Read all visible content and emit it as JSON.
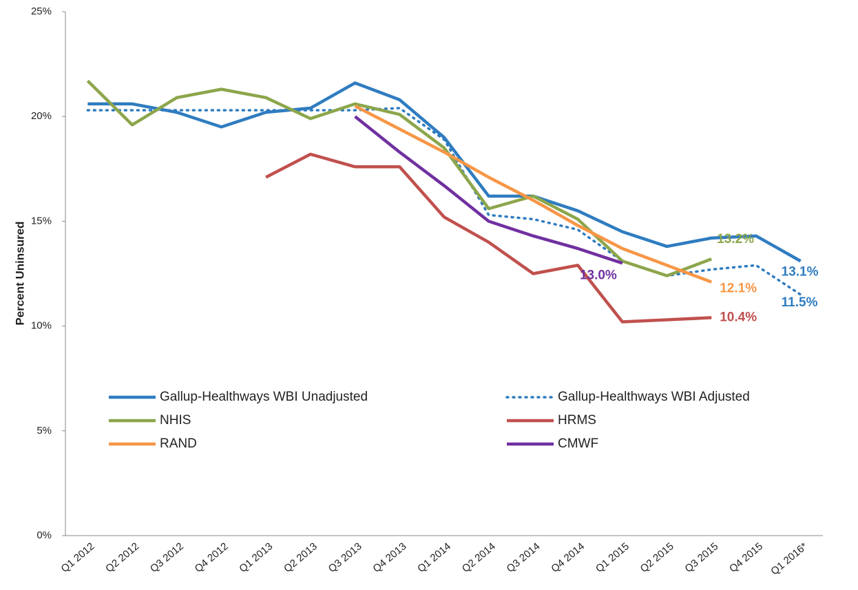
{
  "chart_data": {
    "type": "line",
    "y_label": "Percent Uninsured",
    "categories": [
      "Q1 2012",
      "Q2 2012",
      "Q3 2012",
      "Q4 2012",
      "Q1 2013",
      "Q2 2013",
      "Q3 2013",
      "Q4 2013",
      "Q1 2014",
      "Q2 2014",
      "Q3 2014",
      "Q4 2014",
      "Q1 2015",
      "Q2 2015",
      "Q3 2015",
      "Q4 2015",
      "Q1 2016*"
    ],
    "ylim": [
      0,
      25
    ],
    "yticks": [
      {
        "value": 0,
        "label": "0%"
      },
      {
        "value": 5,
        "label": "5%"
      },
      {
        "value": 10,
        "label": "10%"
      },
      {
        "value": 15,
        "label": "15%"
      },
      {
        "value": 20,
        "label": "20%"
      },
      {
        "value": 25,
        "label": "25%"
      }
    ],
    "grid": false,
    "series": [
      {
        "name": "Gallup-Healthways WBI Unadjusted",
        "color": "#2f7cc0",
        "style": "solid",
        "values": [
          20.6,
          20.6,
          20.2,
          19.5,
          20.2,
          20.4,
          21.6,
          20.8,
          19.0,
          16.2,
          16.2,
          15.5,
          14.5,
          13.8,
          14.2,
          14.3,
          13.1
        ],
        "value_labels": [
          null,
          null,
          null,
          null,
          null,
          null,
          null,
          null,
          null,
          null,
          null,
          null,
          null,
          null,
          null,
          null,
          "13.1%"
        ]
      },
      {
        "name": "Gallup-Healthways WBI Adjusted",
        "color": "#2f7cc0",
        "style": "dotted",
        "values": [
          20.3,
          20.3,
          20.3,
          20.3,
          20.3,
          20.3,
          20.3,
          20.4,
          18.9,
          15.3,
          15.1,
          14.6,
          13.1,
          12.4,
          12.7,
          12.9,
          11.5
        ],
        "value_labels": [
          null,
          null,
          null,
          null,
          null,
          null,
          null,
          null,
          null,
          null,
          null,
          null,
          null,
          null,
          null,
          null,
          "11.5%"
        ]
      },
      {
        "name": "NHIS",
        "color": "#8ca64b",
        "style": "solid",
        "values": [
          21.7,
          19.6,
          20.9,
          21.3,
          20.9,
          19.9,
          20.6,
          20.1,
          18.5,
          15.6,
          16.2,
          15.1,
          13.1,
          12.4,
          13.2,
          null,
          null
        ],
        "value_labels": [
          null,
          null,
          null,
          null,
          null,
          null,
          null,
          null,
          null,
          null,
          null,
          null,
          null,
          null,
          "13.2%",
          null,
          null
        ]
      },
      {
        "name": "HRMS",
        "color": "#c0504d",
        "style": "solid",
        "values": [
          null,
          null,
          null,
          null,
          17.1,
          18.2,
          17.6,
          17.6,
          15.2,
          14.0,
          12.5,
          12.9,
          10.2,
          10.3,
          10.4,
          null,
          null
        ],
        "value_labels": [
          null,
          null,
          null,
          null,
          null,
          null,
          null,
          null,
          null,
          null,
          null,
          null,
          null,
          null,
          "10.4%",
          null,
          null
        ]
      },
      {
        "name": "RAND",
        "color": "#f79646",
        "style": "solid",
        "values": [
          null,
          null,
          null,
          null,
          null,
          null,
          20.5,
          19.4,
          18.3,
          17.1,
          16.0,
          14.8,
          13.7,
          12.9,
          12.1,
          null,
          null
        ],
        "value_labels": [
          null,
          null,
          null,
          null,
          null,
          null,
          null,
          null,
          null,
          null,
          null,
          null,
          null,
          null,
          "12.1%",
          null,
          null
        ]
      },
      {
        "name": "CMWF",
        "color": "#7030a0",
        "style": "solid",
        "values": [
          null,
          null,
          null,
          null,
          null,
          null,
          20.0,
          18.3,
          16.7,
          15.0,
          14.3,
          13.7,
          13.0,
          null,
          null,
          null,
          null
        ],
        "value_labels": [
          null,
          null,
          null,
          null,
          null,
          null,
          null,
          null,
          null,
          null,
          null,
          null,
          "13.0%",
          null,
          null,
          null,
          null
        ]
      }
    ]
  }
}
